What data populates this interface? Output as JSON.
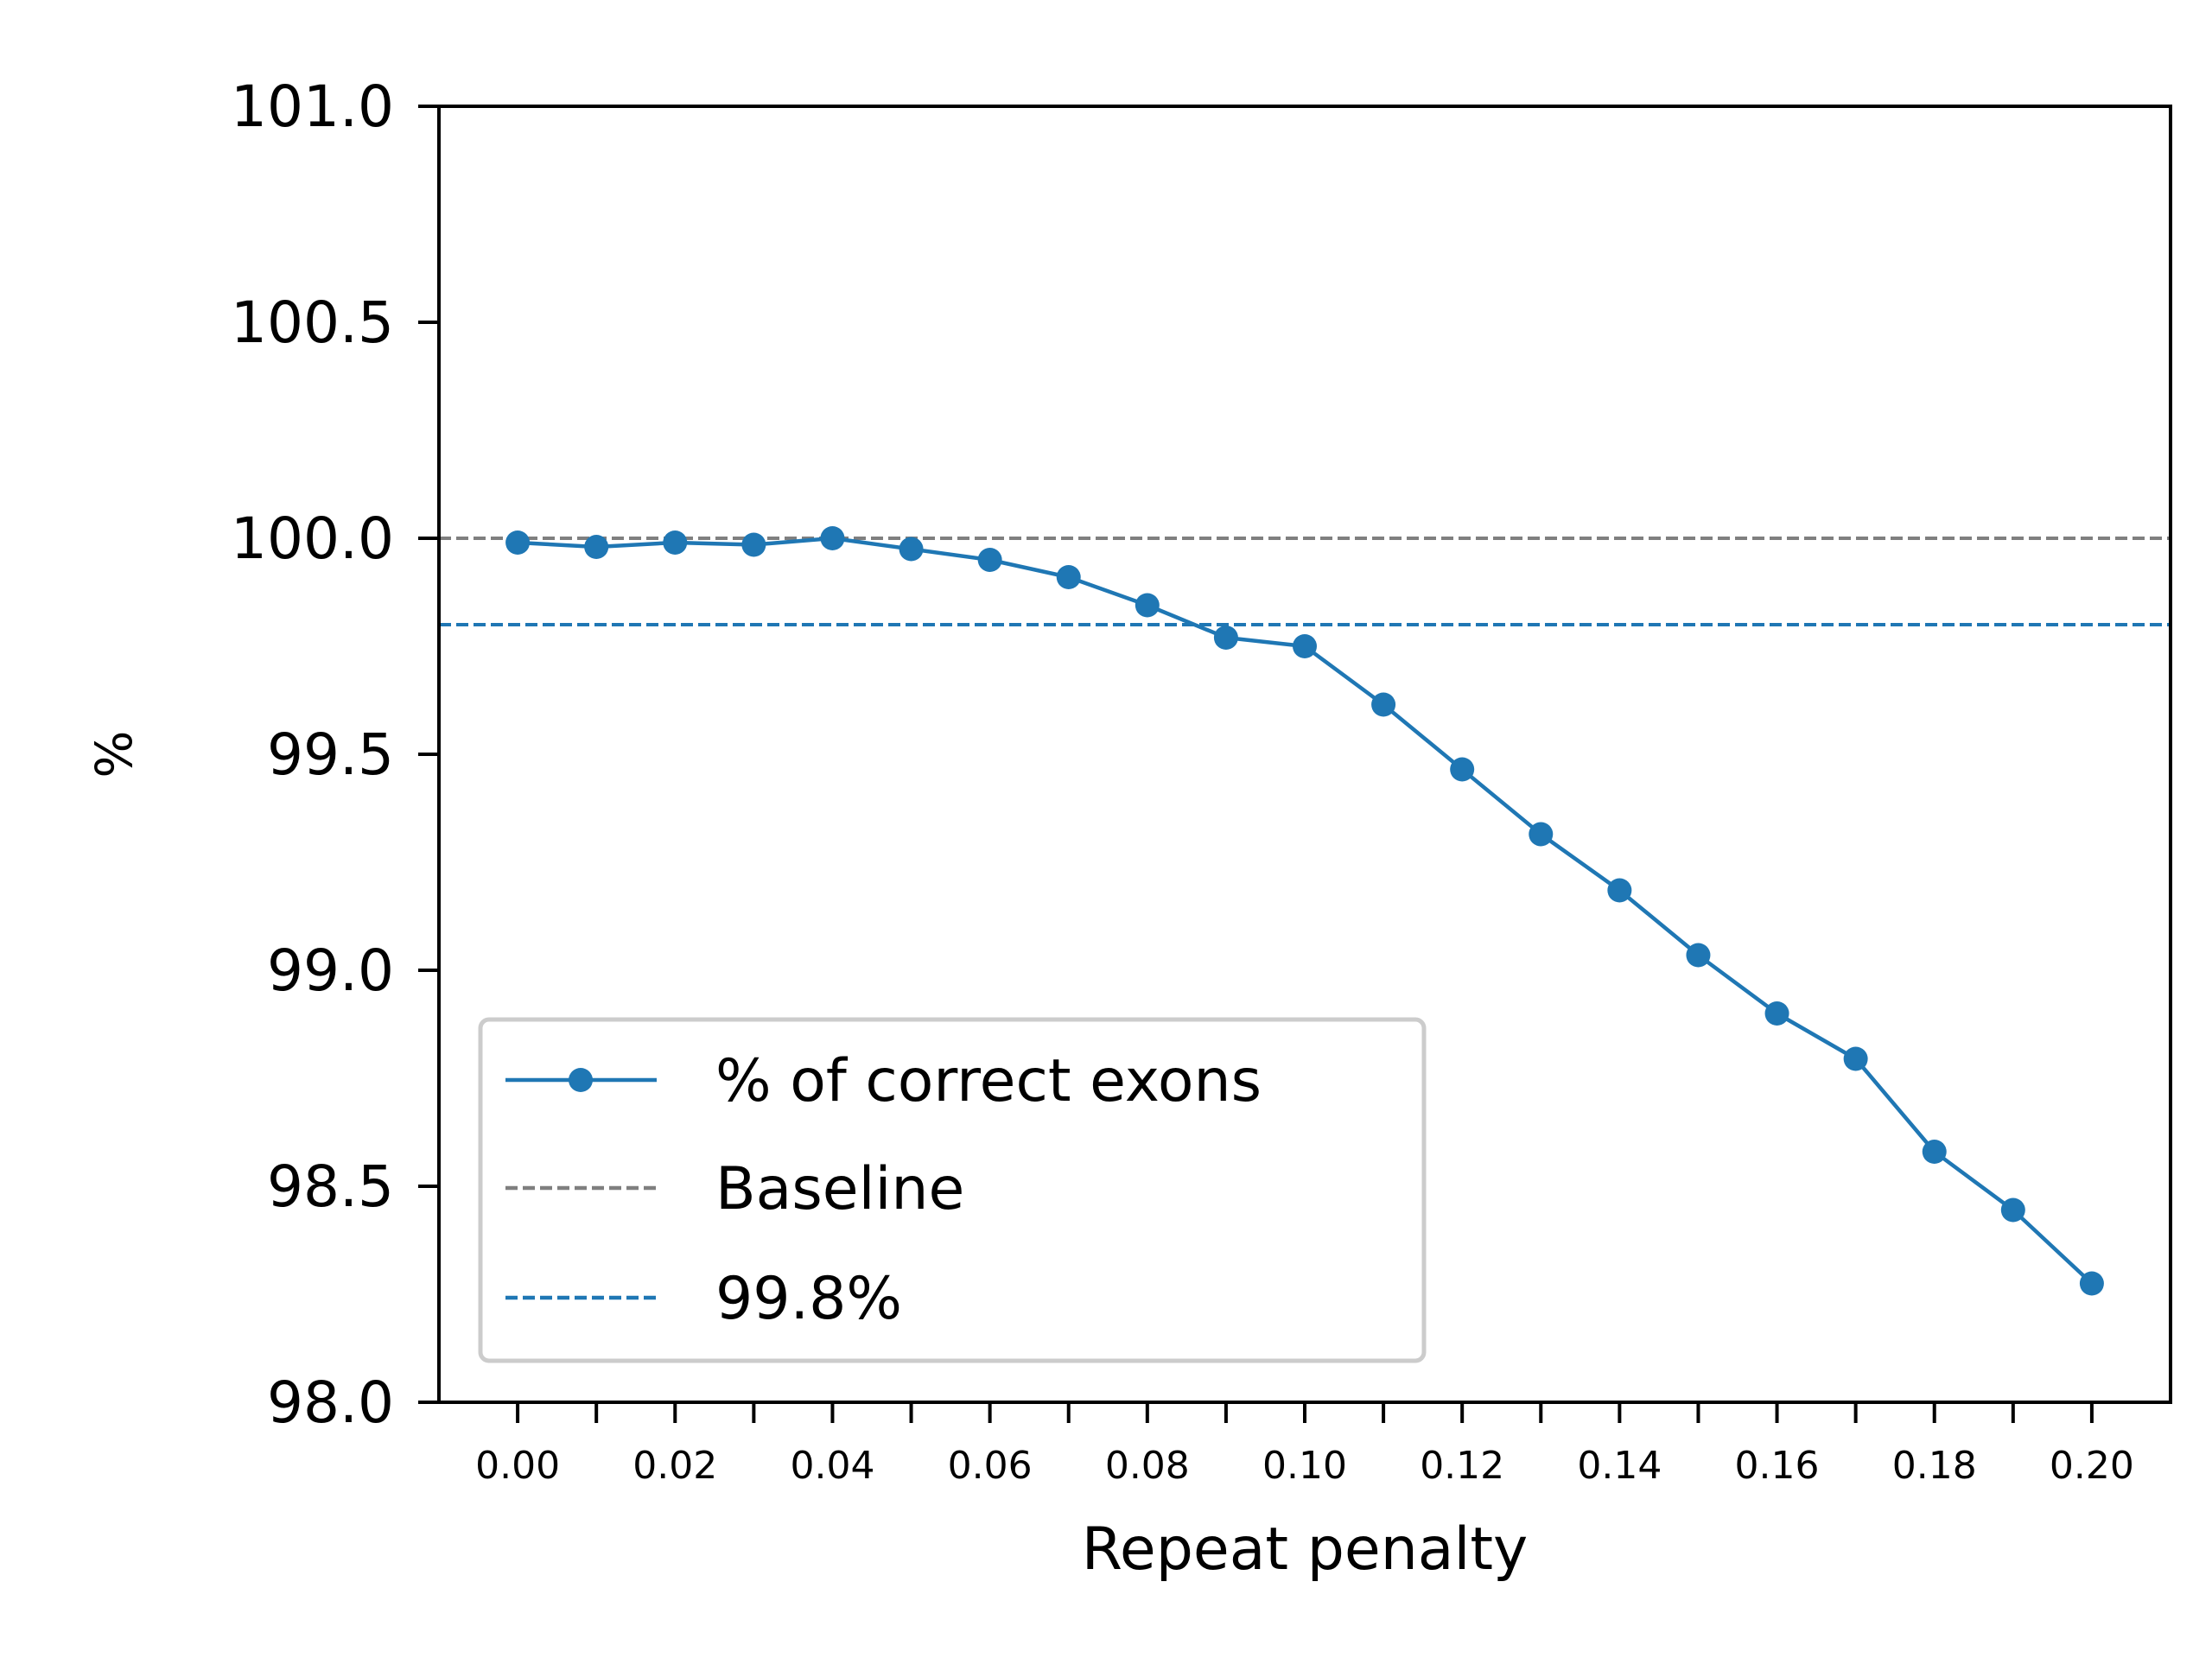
{
  "chart_data": {
    "type": "line",
    "title": "",
    "xlabel": "Repeat penalty",
    "ylabel": "%",
    "xlim": [
      -0.01,
      0.21
    ],
    "ylim": [
      98.0,
      101.0
    ],
    "xticks": [
      0.0,
      0.01,
      0.02,
      0.03,
      0.04,
      0.05,
      0.06,
      0.07,
      0.08,
      0.09,
      0.1,
      0.11,
      0.12,
      0.13,
      0.14,
      0.15,
      0.16,
      0.17,
      0.18,
      0.19,
      0.2
    ],
    "xtick_labels": [
      "0.00",
      "",
      "0.02",
      "",
      "0.04",
      "",
      "0.06",
      "",
      "0.08",
      "",
      "0.10",
      "",
      "0.12",
      "",
      "0.14",
      "",
      "0.16",
      "",
      "0.18",
      "",
      "0.20"
    ],
    "yticks": [
      98.0,
      98.5,
      99.0,
      99.5,
      100.0,
      100.5,
      101.0
    ],
    "ytick_labels": [
      "98.0",
      "98.5",
      "99.0",
      "99.5",
      "100.0",
      "100.5",
      "101.0"
    ],
    "grid": false,
    "legend_position": "lower-left",
    "series": [
      {
        "name": "% of correct exons",
        "color": "#1f77b4",
        "style": "solid-with-markers",
        "x": [
          0.0,
          0.01,
          0.02,
          0.03,
          0.04,
          0.05,
          0.06,
          0.07,
          0.08,
          0.09,
          0.1,
          0.11,
          0.12,
          0.13,
          0.14,
          0.15,
          0.16,
          0.17,
          0.18,
          0.19,
          0.2
        ],
        "y": [
          99.99,
          99.98,
          99.99,
          99.985,
          100.0,
          99.975,
          99.95,
          99.91,
          99.845,
          99.77,
          99.75,
          99.615,
          99.465,
          99.315,
          99.185,
          99.035,
          98.9,
          98.795,
          98.58,
          98.445,
          98.275
        ]
      }
    ],
    "reference_lines": [
      {
        "name": "Baseline",
        "y": 100.0,
        "color": "#7f7f7f",
        "style": "dashed"
      },
      {
        "name": "99.8%",
        "y": 99.8,
        "color": "#1f77b4",
        "style": "dashed"
      }
    ]
  }
}
